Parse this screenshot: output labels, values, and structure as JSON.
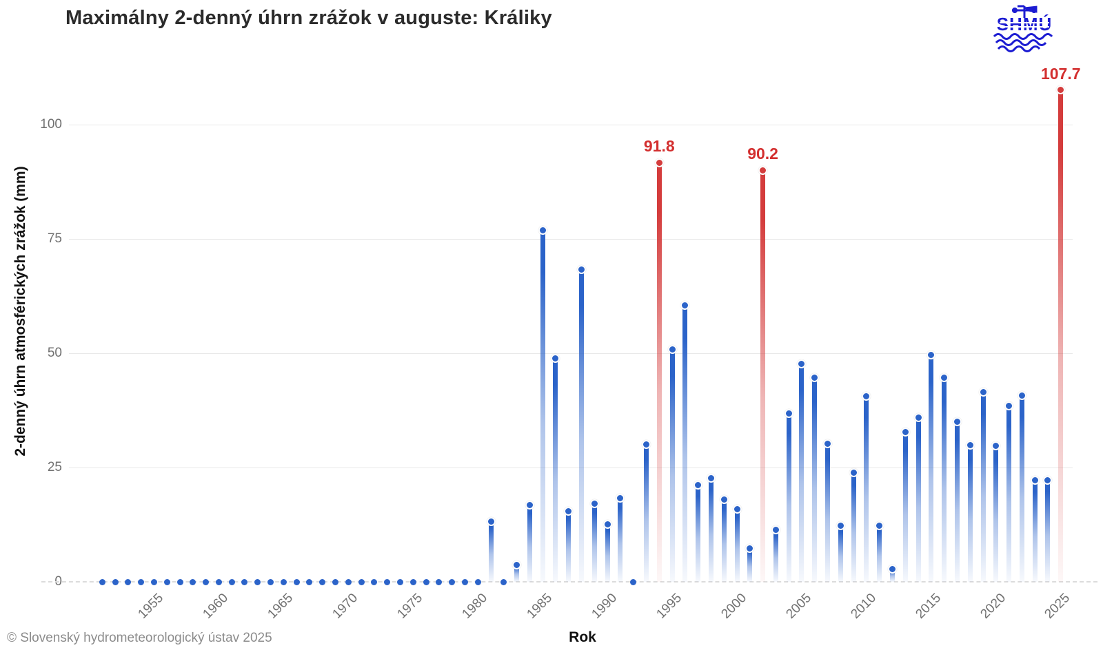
{
  "title": "Maximálny 2-denný úhrn zrážok v auguste: Králiky",
  "footer": "© Slovenský hydrometeorologický ústav 2025",
  "logo": {
    "text": "SHMÚ"
  },
  "chart_data": {
    "type": "bar",
    "title": "Maximálny 2-denný úhrn zrážok v auguste: Králiky",
    "xlabel": "Rok",
    "ylabel": "2-denný úhrn atmosférických zrážok (mm)",
    "ylim": [
      0,
      115
    ],
    "yticks": [
      0,
      25,
      50,
      75,
      100
    ],
    "xticks": [
      1955,
      1960,
      1965,
      1970,
      1975,
      1980,
      1985,
      1990,
      1995,
      2000,
      2005,
      2010,
      2015,
      2020,
      2025
    ],
    "x_range": [
      1951,
      2025
    ],
    "grid": true,
    "legend": "none",
    "colors": {
      "normal": "#2b63c9",
      "record": "#d43c3c",
      "record_label": "#d32f2f"
    },
    "years": [
      1951,
      1952,
      1953,
      1954,
      1955,
      1956,
      1957,
      1958,
      1959,
      1960,
      1961,
      1962,
      1963,
      1964,
      1965,
      1966,
      1967,
      1968,
      1969,
      1970,
      1971,
      1972,
      1973,
      1974,
      1975,
      1976,
      1977,
      1978,
      1979,
      1980,
      1981,
      1982,
      1983,
      1984,
      1985,
      1986,
      1987,
      1988,
      1989,
      1990,
      1991,
      1992,
      1993,
      1994,
      1995,
      1996,
      1997,
      1998,
      1999,
      2000,
      2001,
      2002,
      2003,
      2004,
      2005,
      2006,
      2007,
      2008,
      2009,
      2010,
      2011,
      2012,
      2013,
      2014,
      2015,
      2016,
      2017,
      2018,
      2019,
      2020,
      2021,
      2022,
      2023,
      2024,
      2025
    ],
    "values": [
      0,
      0,
      0,
      0,
      0,
      0,
      0,
      0,
      0,
      0,
      0,
      0,
      0,
      0,
      0,
      0,
      0,
      0,
      0,
      0,
      0,
      0,
      0,
      0,
      0,
      0,
      0,
      0,
      0,
      0,
      13.4,
      0,
      3.8,
      17.0,
      77.0,
      49.0,
      15.6,
      68.5,
      17.2,
      12.7,
      18.4,
      0,
      30.2,
      91.8,
      51.0,
      60.6,
      21.3,
      22.8,
      18.2,
      16.1,
      7.4,
      90.2,
      11.5,
      36.9,
      47.8,
      44.8,
      30.4,
      12.4,
      24.0,
      40.8,
      12.5,
      2.9,
      32.9,
      36.0,
      49.7,
      44.8,
      35.1,
      30.1,
      41.7,
      29.9,
      38.7,
      40.9,
      22.3,
      22.4,
      107.7
    ],
    "records": [
      {
        "year": 1994,
        "label": "91.8"
      },
      {
        "year": 2002,
        "label": "90.2"
      },
      {
        "year": 2025,
        "label": "107.7"
      }
    ]
  }
}
